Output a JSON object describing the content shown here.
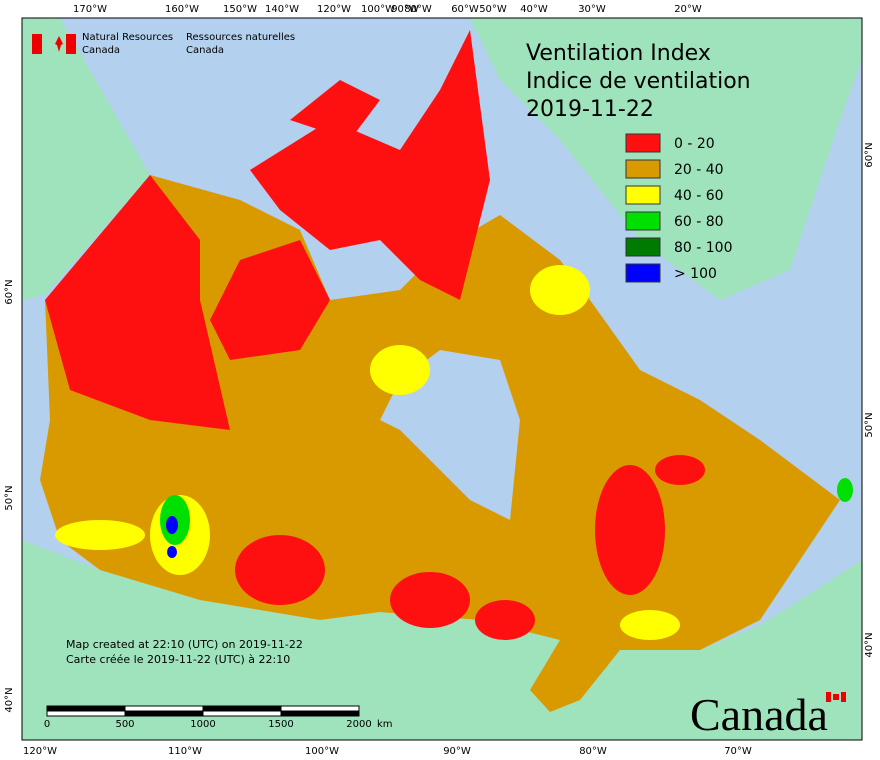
{
  "header": {
    "org_en": [
      "Natural Resources",
      "Canada"
    ],
    "org_fr": [
      "Ressources naturelles",
      "Canada"
    ]
  },
  "title": {
    "line1": "Ventilation Index",
    "line2": "Indice de ventilation",
    "date": "2019-11-22"
  },
  "legend": {
    "items": [
      {
        "label": "0 - 20",
        "color": "#ff1010"
      },
      {
        "label": "20 - 40",
        "color": "#d99a00"
      },
      {
        "label": "40 - 60",
        "color": "#ffff00"
      },
      {
        "label": "60 - 80",
        "color": "#00e000"
      },
      {
        "label": "80 - 100",
        "color": "#007a00"
      },
      {
        "label": "> 100",
        "color": "#0000ff"
      }
    ]
  },
  "graticule": {
    "top": [
      "170°W",
      "160°W",
      "150°W",
      "140°W",
      "120°W",
      "100°W",
      "90°W",
      "80°W",
      "60°W",
      "50°W",
      "40°W",
      "30°W",
      "20°W"
    ],
    "bottom": [
      "120°W",
      "110°W",
      "100°W",
      "90°W",
      "80°W",
      "70°W"
    ],
    "left": [
      "60°N",
      "50°N",
      "40°N"
    ],
    "right": [
      "60°N",
      "50°N",
      "40°N"
    ]
  },
  "credits": {
    "line1": "Map created at 22:10 (UTC) on 2019-11-22",
    "line2": "Carte créée le 2019-11-22 (UTC) à 22:10"
  },
  "scale_bar": {
    "labels": [
      "0",
      "500",
      "1000",
      "1500",
      "2000"
    ],
    "unit": "km"
  },
  "wordmark": "Canada"
}
